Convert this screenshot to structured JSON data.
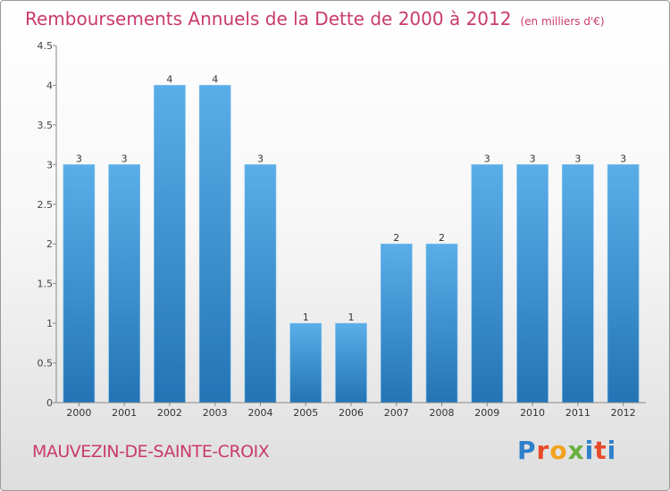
{
  "header": {
    "title": "Remboursements Annuels de la Dette de 2000 à 2012",
    "unit": "(en milliers d'€)"
  },
  "footer": {
    "commune": "MAUVEZIN-DE-SAINTE-CROIX",
    "logo": "Proxiti"
  },
  "colors": {
    "title": "#c93a6e",
    "bar_top": "#5aaee8",
    "bar_bottom": "#2474b5",
    "axis": "#555555"
  },
  "chart_data": {
    "type": "bar",
    "title": "Remboursements Annuels de la Dette de 2000 à 2012",
    "subtitle": "(en milliers d'€)",
    "xlabel": "",
    "ylabel": "",
    "categories": [
      "2000",
      "2001",
      "2002",
      "2003",
      "2004",
      "2005",
      "2006",
      "2007",
      "2008",
      "2009",
      "2010",
      "2011",
      "2012"
    ],
    "values": [
      3,
      3,
      4,
      4,
      3,
      1,
      1,
      2,
      2,
      3,
      3,
      3,
      3
    ],
    "data_labels": [
      "3",
      "3",
      "4",
      "4",
      "3",
      "1",
      "1",
      "2",
      "2",
      "3",
      "3",
      "3",
      "3"
    ],
    "yticks": [
      "0",
      "0.5",
      "1",
      "1.5",
      "2",
      "2.5",
      "3",
      "3.5",
      "4",
      "4.5"
    ],
    "ylim": [
      0,
      4.5
    ],
    "grid": false,
    "legend": "none"
  }
}
